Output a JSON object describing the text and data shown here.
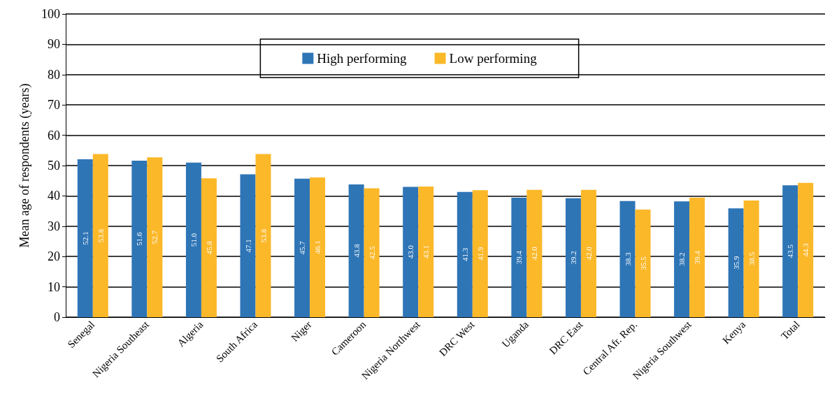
{
  "chart_data": {
    "type": "bar",
    "ylabel": "Mean age of respondents (years)",
    "categories": [
      "Senegal",
      "Nigeria Southeast",
      "Algeria",
      "South Africa",
      "Niger",
      "Cameroon",
      "Nigeria Northwest",
      "DRC West",
      "Uganda",
      "DRC East",
      "Central Afr. Rep.",
      "Nigeria Southwest",
      "Kenya",
      "Total"
    ],
    "series": [
      {
        "name": "High performing",
        "color": "#2e75b6",
        "values": [
          52.1,
          51.6,
          51.0,
          47.1,
          45.7,
          43.8,
          43.0,
          41.3,
          39.4,
          39.2,
          38.3,
          38.2,
          35.9,
          43.5
        ],
        "value_labels": [
          "52.1",
          "51.6",
          "51.0",
          "47.1",
          "45.7",
          "43.8",
          "43.0",
          "41.3",
          "39.4",
          "39.2",
          "38.3",
          "38.2",
          "35.9",
          "43.5"
        ]
      },
      {
        "name": "Low performing",
        "color": "#fbb829",
        "values": [
          53.8,
          52.7,
          45.8,
          53.8,
          46.1,
          42.5,
          43.1,
          41.9,
          42.0,
          42.0,
          35.5,
          39.4,
          38.5,
          44.3
        ],
        "value_labels": [
          "53.8",
          "52.7",
          "45.8",
          "53.8",
          "46.1",
          "42.5",
          "43.1",
          "41.9",
          "42.0",
          "42.0",
          "35.5",
          "39.4",
          "38.5",
          "44.3"
        ]
      }
    ],
    "ylim": [
      0,
      100
    ],
    "yticks": [
      0,
      10,
      20,
      30,
      40,
      50,
      60,
      70,
      80,
      90,
      100
    ],
    "grid": "y",
    "legend": "top"
  }
}
